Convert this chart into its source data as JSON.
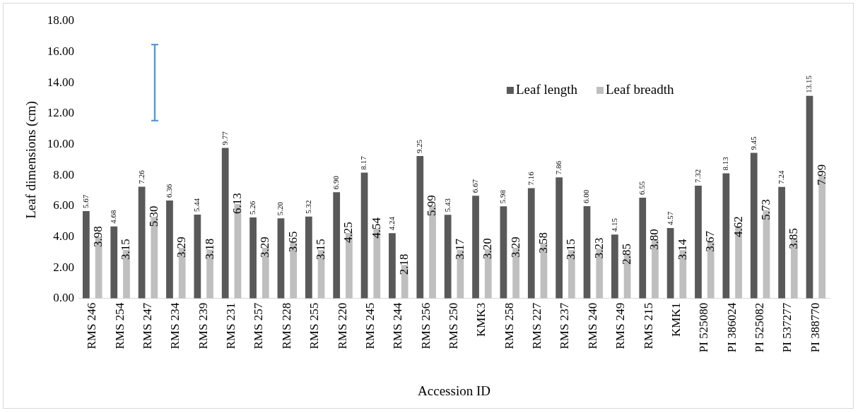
{
  "chart_data": {
    "type": "bar",
    "xlabel": "Accession ID",
    "ylabel": "Leaf dimensions (cm)",
    "categories": [
      "RMS 246",
      "RMS 254",
      "RMS 247",
      "RMS 234",
      "RMS 239",
      "RMS 231",
      "RMS 257",
      "RMS 228",
      "RMS 255",
      "RMS 220",
      "RMS 245",
      "RMS 244",
      "RMS 256",
      "RMS 250",
      "KMK3",
      "RMS 258",
      "RMS 227",
      "RMS 237",
      "RMS 240",
      "RMS 249",
      "RMS 215",
      "KMK1",
      "PI 525080",
      "PI 386024",
      "PI 525082",
      "PI 537277",
      "PI 388770"
    ],
    "series": [
      {
        "name": "Leaf length",
        "color": "#595959",
        "values": [
          5.67,
          4.68,
          7.26,
          6.36,
          5.44,
          9.77,
          5.26,
          5.2,
          5.32,
          6.9,
          8.17,
          4.24,
          9.25,
          5.43,
          6.67,
          5.98,
          7.16,
          7.86,
          6.0,
          4.15,
          6.55,
          4.57,
          7.32,
          8.13,
          9.45,
          7.24,
          13.15
        ],
        "value_labels": [
          "5.67",
          "4.68",
          "7.26",
          "6.36",
          "5.44",
          "9.77",
          "5.26",
          "5.20",
          "5.32",
          "6.90",
          "8.17",
          "4.24",
          "9.25",
          "5.43",
          "6.67",
          "5.98",
          "7.16",
          "7.86",
          "6.00",
          "4.15",
          "6.55",
          "4.57",
          "7.32",
          "8.13",
          "9.45",
          "7.24",
          "13.15"
        ]
      },
      {
        "name": "Leaf breadth",
        "color": "#bfbfbf",
        "values": [
          3.98,
          3.15,
          5.3,
          3.29,
          3.18,
          6.13,
          3.29,
          3.65,
          3.15,
          4.25,
          4.54,
          2.18,
          5.99,
          3.17,
          3.2,
          3.29,
          3.58,
          3.15,
          3.23,
          2.85,
          3.8,
          3.14,
          3.67,
          4.62,
          5.73,
          3.85,
          7.99
        ],
        "value_labels": [
          "3.98",
          "3.15",
          "5.30",
          "3.29",
          "3.18",
          "6.13",
          "3.29",
          "3.65",
          "3.15",
          "4.25",
          "4.54",
          "2.18",
          "5.99",
          "3.17",
          "3.20",
          "3.29",
          "3.58",
          "3.15",
          "3.23",
          "2.85",
          "3.80",
          "3.14",
          "3.67",
          "4.62",
          "5.73",
          "3.85",
          "7.99"
        ]
      }
    ],
    "ylim": [
      0,
      18
    ],
    "yticks": [
      {
        "value": 0,
        "label": "0.00"
      },
      {
        "value": 2,
        "label": "2.00"
      },
      {
        "value": 4,
        "label": "4.00"
      },
      {
        "value": 6,
        "label": "6.00"
      },
      {
        "value": 8,
        "label": "8.00"
      },
      {
        "value": 10,
        "label": "10.00"
      },
      {
        "value": 12,
        "label": "12.00"
      },
      {
        "value": 14,
        "label": "14.00"
      },
      {
        "value": 16,
        "label": "16.00"
      },
      {
        "value": 18,
        "label": "18.00"
      }
    ],
    "grid": false,
    "legend": "top right"
  }
}
